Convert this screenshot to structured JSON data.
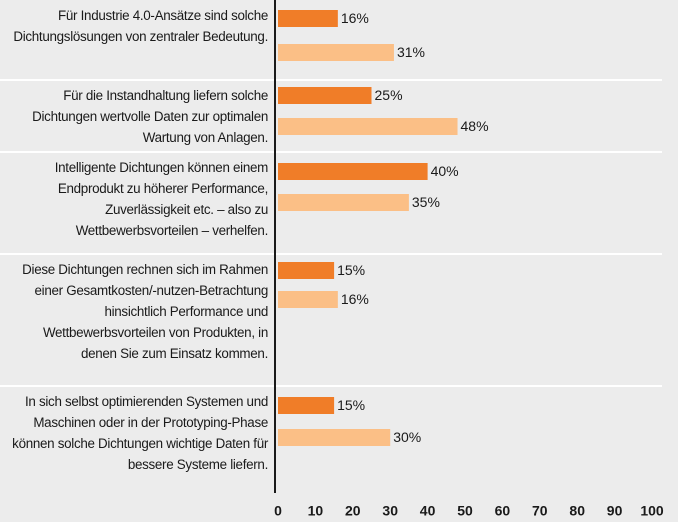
{
  "chart_data": {
    "type": "bar",
    "orientation": "horizontal",
    "categories": [
      "Für Industrie 4.0-Ansätze sind solche Dichtungslösungen von zentraler Bedeutung.",
      "Für die Instandhaltung liefern solche Dichtungen wertvolle Daten zur optimalen Wartung von Anlagen.",
      "Intelligente Dichtungen können einem Endprodukt zu höherer Performance, Zuverlässigkeit etc. – also zu Wettbewerbsvorteilen – verhelfen.",
      "Diese Dichtungen rechnen sich im Rahmen einer Gesamtkosten/-nutzen-Betrachtung hinsichtlich Performance und Wettbewerbsvorteilen von Produkten, in denen Sie zum Einsatz kommen.",
      "In sich selbst optimierenden Systemen und Maschinen oder in der Prototyping-Phase können solche Dichtungen wichtige Daten für bessere Systeme liefern."
    ],
    "series": [
      {
        "color": "#f07d28",
        "values": [
          16,
          25,
          40,
          15,
          15
        ],
        "value_labels": [
          "16%",
          "25%",
          "40%",
          "15%",
          "15%"
        ]
      },
      {
        "color": "#fbbf86",
        "values": [
          31,
          48,
          35,
          16,
          30
        ],
        "value_labels": [
          "31%",
          "48%",
          "35%",
          "16%",
          "30%"
        ]
      }
    ],
    "xlim": [
      0,
      100
    ],
    "xticks": [
      0,
      10,
      20,
      30,
      40,
      50,
      60,
      70,
      80,
      90,
      100
    ]
  }
}
